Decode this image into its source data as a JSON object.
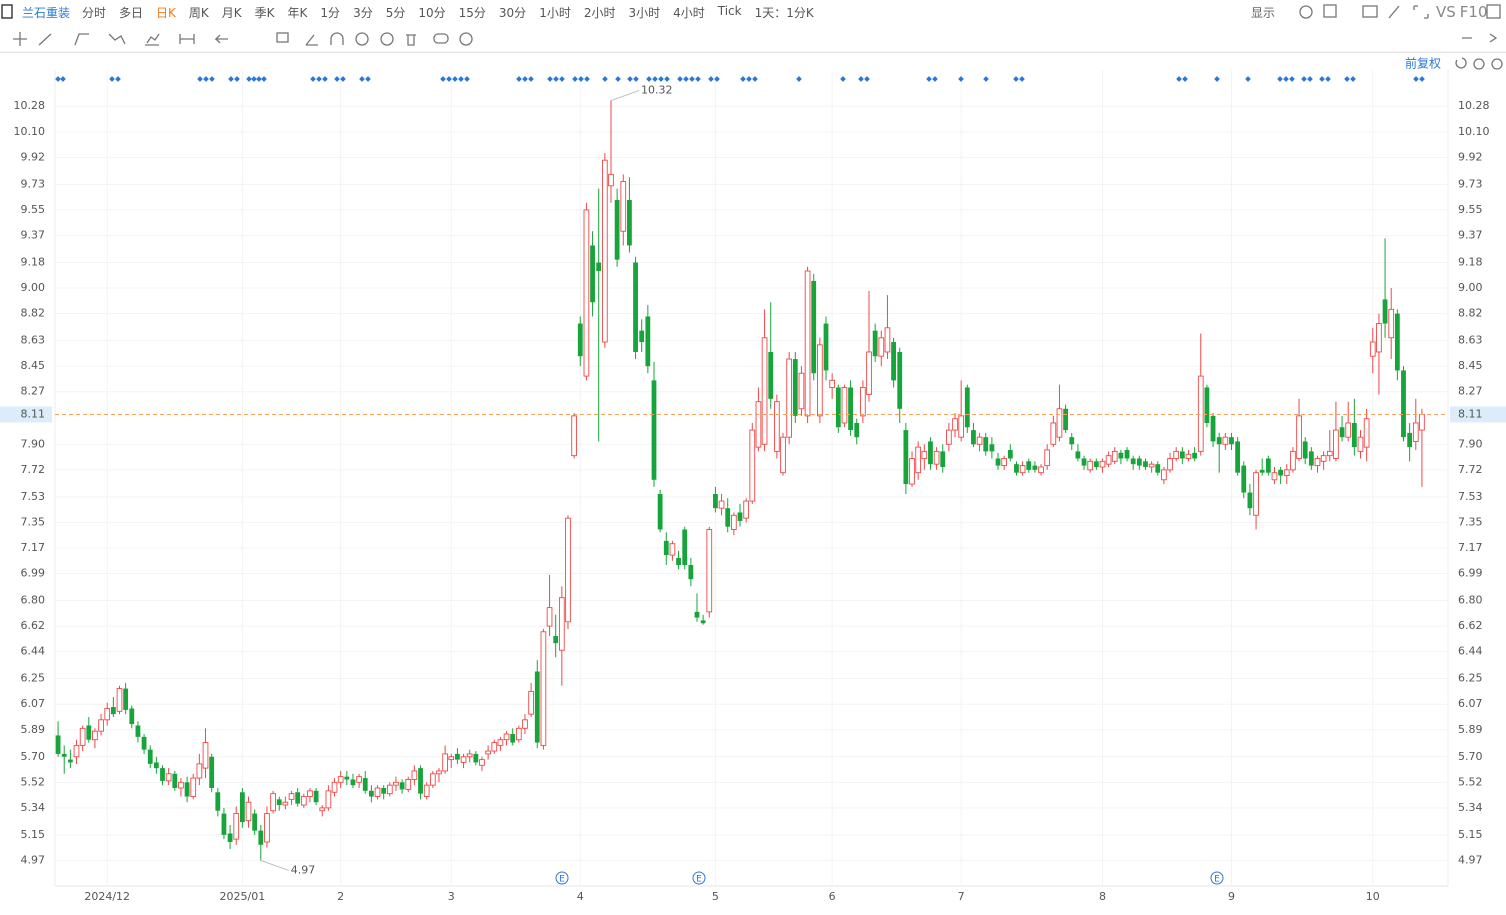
{
  "toolbar": {
    "stock": "兰石重装",
    "periods": [
      "分时",
      "多日",
      "日K",
      "周K",
      "月K",
      "季K",
      "年K",
      "1分",
      "3分",
      "5分",
      "10分",
      "15分",
      "30分",
      "1小时",
      "2小时",
      "3小时",
      "4小时",
      "Tick"
    ],
    "active_index": 2,
    "interval": "1天：1分K",
    "display": "显示",
    "compare": "VS",
    "f10": "F10",
    "adjust": "前复权"
  },
  "chart_data": {
    "type": "candlestick",
    "up_color": "#f04848",
    "down_color": "#17a43b",
    "current_price": 8.11,
    "max_label": 10.32,
    "min_label": 4.97,
    "event_label": "E",
    "ylim": [
      4.79,
      10.5
    ],
    "yticks": [
      4.97,
      5.15,
      5.34,
      5.52,
      {
        "value": 5.7,
        "label": "5.70"
      },
      5.89,
      6.07,
      6.25,
      6.44,
      6.62,
      {
        "value": 6.8,
        "label": "6.80"
      },
      6.99,
      7.17,
      7.35,
      7.53,
      7.72,
      {
        "value": 7.9,
        "label": "7.90"
      },
      8.27,
      8.45,
      8.63,
      8.82,
      {
        "value": 9,
        "label": "9.00"
      },
      9.18,
      9.37,
      9.55,
      9.73,
      9.92,
      {
        "value": 10.1,
        "label": "10.10"
      },
      10.28
    ],
    "categories": [
      null,
      null,
      null,
      null,
      null,
      null,
      null,
      null,
      "2024/12",
      null,
      null,
      null,
      null,
      null,
      null,
      null,
      null,
      null,
      null,
      null,
      null,
      null,
      null,
      null,
      null,
      null,
      null,
      null,
      null,
      null,
      "2025/01",
      null,
      null,
      null,
      null,
      null,
      null,
      null,
      null,
      null,
      null,
      null,
      null,
      null,
      null,
      null,
      "2",
      null,
      null,
      null,
      null,
      null,
      null,
      null,
      null,
      null,
      null,
      null,
      null,
      null,
      null,
      null,
      null,
      null,
      "3",
      null,
      null,
      null,
      null,
      null,
      null,
      null,
      null,
      null,
      null,
      null,
      null,
      null,
      null,
      null,
      null,
      null,
      null,
      null,
      null,
      "4",
      null,
      null,
      null,
      null,
      null,
      null,
      null,
      null,
      null,
      null,
      null,
      null,
      null,
      null,
      null,
      null,
      null,
      null,
      null,
      null,
      null,
      "5",
      null,
      null,
      null,
      null,
      null,
      null,
      null,
      null,
      null,
      null,
      null,
      null,
      null,
      null,
      null,
      null,
      null,
      null,
      "6",
      null,
      null,
      null,
      null,
      null,
      null,
      null,
      null,
      null,
      null,
      null,
      null,
      null,
      null,
      null,
      null,
      null,
      null,
      null,
      null,
      "7",
      null,
      null,
      null,
      null,
      null,
      null,
      null,
      null,
      null,
      null,
      null,
      null,
      null,
      null,
      null,
      null,
      null,
      null,
      null,
      null,
      null,
      null,
      "8",
      null,
      null,
      null,
      null,
      null,
      null,
      null,
      null,
      null,
      null,
      null,
      null,
      null,
      null,
      null,
      null,
      null,
      null,
      null,
      null,
      "9",
      null,
      null,
      null,
      null,
      null,
      null,
      null,
      null,
      null,
      null,
      null,
      null,
      null,
      null,
      null,
      null,
      null,
      null,
      null,
      null,
      null,
      null,
      "10",
      null,
      null,
      null,
      null,
      null,
      null,
      null,
      null
    ],
    "ohlc": [
      [
        5.85,
        5.95,
        5.7,
        5.72
      ],
      [
        5.72,
        5.78,
        5.58,
        5.7
      ],
      [
        5.68,
        5.75,
        5.62,
        5.66
      ],
      [
        5.7,
        5.82,
        5.65,
        5.78
      ],
      [
        5.78,
        5.92,
        5.74,
        5.9
      ],
      [
        5.92,
        5.98,
        5.8,
        5.82
      ],
      [
        5.82,
        5.9,
        5.76,
        5.88
      ],
      [
        5.88,
        6.0,
        5.85,
        5.96
      ],
      [
        5.96,
        6.08,
        5.92,
        6.04
      ],
      [
        6.05,
        6.12,
        5.98,
        6.0
      ],
      [
        6.02,
        6.2,
        6.0,
        6.18
      ],
      [
        6.18,
        6.22,
        6.0,
        6.03
      ],
      [
        6.04,
        6.06,
        5.9,
        5.93
      ],
      [
        5.92,
        5.95,
        5.8,
        5.84
      ],
      [
        5.84,
        5.86,
        5.72,
        5.75
      ],
      [
        5.75,
        5.78,
        5.62,
        5.65
      ],
      [
        5.66,
        5.7,
        5.58,
        5.62
      ],
      [
        5.62,
        5.64,
        5.5,
        5.53
      ],
      [
        5.53,
        5.62,
        5.5,
        5.58
      ],
      [
        5.58,
        5.6,
        5.46,
        5.48
      ],
      [
        5.48,
        5.55,
        5.42,
        5.52
      ],
      [
        5.52,
        5.56,
        5.38,
        5.42
      ],
      [
        5.42,
        5.58,
        5.4,
        5.55
      ],
      [
        5.55,
        5.72,
        5.5,
        5.65
      ],
      [
        5.62,
        5.9,
        5.55,
        5.8
      ],
      [
        5.7,
        5.72,
        5.45,
        5.48
      ],
      [
        5.45,
        5.48,
        5.28,
        5.32
      ],
      [
        5.3,
        5.34,
        5.12,
        5.15
      ],
      [
        5.16,
        5.22,
        5.05,
        5.1
      ],
      [
        5.12,
        5.35,
        5.08,
        5.3
      ],
      [
        5.45,
        5.48,
        5.2,
        5.24
      ],
      [
        5.25,
        5.42,
        5.2,
        5.38
      ],
      [
        5.3,
        5.33,
        5.15,
        5.18
      ],
      [
        5.18,
        5.22,
        4.97,
        5.08
      ],
      [
        5.1,
        5.35,
        5.06,
        5.3
      ],
      [
        5.32,
        5.46,
        5.3,
        5.44
      ],
      [
        5.4,
        5.42,
        5.32,
        5.36
      ],
      [
        5.36,
        5.42,
        5.33,
        5.38
      ],
      [
        5.4,
        5.46,
        5.36,
        5.44
      ],
      [
        5.45,
        5.48,
        5.35,
        5.37
      ],
      [
        5.36,
        5.44,
        5.34,
        5.42
      ],
      [
        5.42,
        5.48,
        5.38,
        5.46
      ],
      [
        5.46,
        5.48,
        5.36,
        5.38
      ],
      [
        5.32,
        5.36,
        5.28,
        5.34
      ],
      [
        5.34,
        5.5,
        5.32,
        5.46
      ],
      [
        5.45,
        5.55,
        5.42,
        5.52
      ],
      [
        5.52,
        5.6,
        5.48,
        5.56
      ],
      [
        5.56,
        5.6,
        5.5,
        5.54
      ],
      [
        5.54,
        5.58,
        5.48,
        5.5
      ],
      [
        5.52,
        5.58,
        5.48,
        5.56
      ],
      [
        5.55,
        5.6,
        5.44,
        5.46
      ],
      [
        5.46,
        5.5,
        5.38,
        5.42
      ],
      [
        5.42,
        5.5,
        5.4,
        5.48
      ],
      [
        5.48,
        5.5,
        5.4,
        5.44
      ],
      [
        5.44,
        5.52,
        5.42,
        5.5
      ],
      [
        5.5,
        5.56,
        5.46,
        5.52
      ],
      [
        5.52,
        5.54,
        5.44,
        5.47
      ],
      [
        5.47,
        5.56,
        5.45,
        5.54
      ],
      [
        5.54,
        5.64,
        5.5,
        5.6
      ],
      [
        5.62,
        5.64,
        5.4,
        5.44
      ],
      [
        5.42,
        5.52,
        5.4,
        5.5
      ],
      [
        5.5,
        5.6,
        5.48,
        5.58
      ],
      [
        5.58,
        5.62,
        5.52,
        5.6
      ],
      [
        5.6,
        5.78,
        5.58,
        5.72
      ],
      [
        5.68,
        5.72,
        5.62,
        5.7
      ],
      [
        5.72,
        5.76,
        5.65,
        5.68
      ],
      [
        5.66,
        5.72,
        5.62,
        5.7
      ],
      [
        5.7,
        5.75,
        5.66,
        5.72
      ],
      [
        5.72,
        5.74,
        5.64,
        5.66
      ],
      [
        5.64,
        5.7,
        5.6,
        5.68
      ],
      [
        5.72,
        5.78,
        5.68,
        5.74
      ],
      [
        5.74,
        5.82,
        5.72,
        5.8
      ],
      [
        5.78,
        5.84,
        5.74,
        5.82
      ],
      [
        5.82,
        5.88,
        5.78,
        5.86
      ],
      [
        5.86,
        5.9,
        5.78,
        5.8
      ],
      [
        5.82,
        5.92,
        5.8,
        5.9
      ],
      [
        5.9,
        6.0,
        5.86,
        5.96
      ],
      [
        6.0,
        6.22,
        5.98,
        6.16
      ],
      [
        6.3,
        6.38,
        5.76,
        5.8
      ],
      [
        5.78,
        6.6,
        5.75,
        6.58
      ],
      [
        6.62,
        6.98,
        6.55,
        6.75
      ],
      [
        6.55,
        6.7,
        6.4,
        6.5
      ],
      [
        6.45,
        6.9,
        6.2,
        6.82
      ],
      [
        6.65,
        7.4,
        6.6,
        7.38
      ],
      [
        7.82,
        8.12,
        7.8,
        8.1
      ],
      [
        8.75,
        8.8,
        8.45,
        8.52
      ],
      [
        8.38,
        9.6,
        8.35,
        9.55
      ],
      [
        9.3,
        9.4,
        8.8,
        8.9
      ],
      [
        9.18,
        9.7,
        7.92,
        9.12
      ],
      [
        8.62,
        9.95,
        8.58,
        9.9
      ],
      [
        9.72,
        10.32,
        9.6,
        9.8
      ],
      [
        9.62,
        9.7,
        9.15,
        9.2
      ],
      [
        9.4,
        9.8,
        9.3,
        9.75
      ],
      [
        9.62,
        9.78,
        9.25,
        9.3
      ],
      [
        9.18,
        9.22,
        8.5,
        8.55
      ],
      [
        8.7,
        8.78,
        8.55,
        8.62
      ],
      [
        8.8,
        8.88,
        8.4,
        8.45
      ],
      [
        8.35,
        8.48,
        7.6,
        7.65
      ],
      [
        7.55,
        7.58,
        7.28,
        7.3
      ],
      [
        7.22,
        7.28,
        7.05,
        7.12
      ],
      [
        7.12,
        7.22,
        7.08,
        7.2
      ],
      [
        7.1,
        7.15,
        7.02,
        7.05
      ],
      [
        7.3,
        7.32,
        7.02,
        7.05
      ],
      [
        7.05,
        7.1,
        6.9,
        6.95
      ],
      [
        6.72,
        6.85,
        6.65,
        6.68
      ],
      [
        6.66,
        6.7,
        6.63,
        6.64
      ],
      [
        6.72,
        7.32,
        6.68,
        7.3
      ],
      [
        7.55,
        7.6,
        7.42,
        7.45
      ],
      [
        7.45,
        7.55,
        7.4,
        7.5
      ],
      [
        7.45,
        7.52,
        7.28,
        7.32
      ],
      [
        7.3,
        7.42,
        7.26,
        7.4
      ],
      [
        7.42,
        7.48,
        7.32,
        7.36
      ],
      [
        7.38,
        7.52,
        7.35,
        7.5
      ],
      [
        7.5,
        8.05,
        7.48,
        8.0
      ],
      [
        7.88,
        8.3,
        7.85,
        8.2
      ],
      [
        7.9,
        8.85,
        7.85,
        8.65
      ],
      [
        8.55,
        8.9,
        8.15,
        8.22
      ],
      [
        7.85,
        8.25,
        7.8,
        8.2
      ],
      [
        7.7,
        7.98,
        7.68,
        7.95
      ],
      [
        7.95,
        8.55,
        7.9,
        8.5
      ],
      [
        8.5,
        8.55,
        8.05,
        8.1
      ],
      [
        8.15,
        8.45,
        8.1,
        8.4
      ],
      [
        8.1,
        9.15,
        8.05,
        9.12
      ],
      [
        9.05,
        9.1,
        8.35,
        8.4
      ],
      [
        8.1,
        8.65,
        8.05,
        8.6
      ],
      [
        8.75,
        8.8,
        8.35,
        8.42
      ],
      [
        8.3,
        8.4,
        8.22,
        8.35
      ],
      [
        8.3,
        8.32,
        7.98,
        8.02
      ],
      [
        8.05,
        8.32,
        8.02,
        8.3
      ],
      [
        8.3,
        8.35,
        7.96,
        8.0
      ],
      [
        8.05,
        8.08,
        7.9,
        7.95
      ],
      [
        8.1,
        8.35,
        8.05,
        8.3
      ],
      [
        8.25,
        8.98,
        8.2,
        8.55
      ],
      [
        8.7,
        8.75,
        8.48,
        8.52
      ],
      [
        8.52,
        8.7,
        8.45,
        8.65
      ],
      [
        8.55,
        8.95,
        8.5,
        8.72
      ],
      [
        8.62,
        8.65,
        8.3,
        8.35
      ],
      [
        8.55,
        8.58,
        8.05,
        8.15
      ],
      [
        8.0,
        8.05,
        7.55,
        7.62
      ],
      [
        7.62,
        7.85,
        7.6,
        7.8
      ],
      [
        7.7,
        7.92,
        7.65,
        7.88
      ],
      [
        7.8,
        7.9,
        7.72,
        7.85
      ],
      [
        7.92,
        7.95,
        7.72,
        7.76
      ],
      [
        7.76,
        7.88,
        7.72,
        7.85
      ],
      [
        7.85,
        7.9,
        7.7,
        7.74
      ],
      [
        7.9,
        8.05,
        7.85,
        8.0
      ],
      [
        8.0,
        8.12,
        7.95,
        8.08
      ],
      [
        7.95,
        8.35,
        7.92,
        8.1
      ],
      [
        8.3,
        8.32,
        7.98,
        8.02
      ],
      [
        8.0,
        8.05,
        7.88,
        7.9
      ],
      [
        7.9,
        7.98,
        7.85,
        7.95
      ],
      [
        7.95,
        7.98,
        7.82,
        7.85
      ],
      [
        7.9,
        7.95,
        7.8,
        7.85
      ],
      [
        7.8,
        7.84,
        7.72,
        7.75
      ],
      [
        7.75,
        7.82,
        7.72,
        7.8
      ],
      [
        7.86,
        7.9,
        7.78,
        7.8
      ],
      [
        7.76,
        7.78,
        7.68,
        7.7
      ],
      [
        7.7,
        7.78,
        7.68,
        7.75
      ],
      [
        7.78,
        7.8,
        7.7,
        7.72
      ],
      [
        7.75,
        7.78,
        7.7,
        7.72
      ],
      [
        7.7,
        7.76,
        7.68,
        7.74
      ],
      [
        7.75,
        7.9,
        7.72,
        7.86
      ],
      [
        7.9,
        8.1,
        7.88,
        8.05
      ],
      [
        7.95,
        8.32,
        7.92,
        8.15
      ],
      [
        8.15,
        8.18,
        7.98,
        8.0
      ],
      [
        7.95,
        7.98,
        7.86,
        7.9
      ],
      [
        7.85,
        7.9,
        7.78,
        7.8
      ],
      [
        7.8,
        7.82,
        7.72,
        7.75
      ],
      [
        7.72,
        7.8,
        7.7,
        7.78
      ],
      [
        7.78,
        7.8,
        7.72,
        7.74
      ],
      [
        7.74,
        7.8,
        7.7,
        7.78
      ],
      [
        7.76,
        7.85,
        7.74,
        7.82
      ],
      [
        7.78,
        7.88,
        7.76,
        7.85
      ],
      [
        7.84,
        7.86,
        7.76,
        7.8
      ],
      [
        7.86,
        7.88,
        7.78,
        7.8
      ],
      [
        7.8,
        7.82,
        7.72,
        7.76
      ],
      [
        7.8,
        7.82,
        7.72,
        7.75
      ],
      [
        7.78,
        7.8,
        7.72,
        7.74
      ],
      [
        7.74,
        7.78,
        7.7,
        7.76
      ],
      [
        7.76,
        7.78,
        7.68,
        7.7
      ],
      [
        7.65,
        7.74,
        7.62,
        7.72
      ],
      [
        7.72,
        7.84,
        7.7,
        7.8
      ],
      [
        7.8,
        7.88,
        7.78,
        7.85
      ],
      [
        7.85,
        7.88,
        7.76,
        7.8
      ],
      [
        7.8,
        7.86,
        7.78,
        7.83
      ],
      [
        7.84,
        7.88,
        7.78,
        7.8
      ],
      [
        7.85,
        8.68,
        7.82,
        8.38
      ],
      [
        8.3,
        8.32,
        8.02,
        8.05
      ],
      [
        8.1,
        8.12,
        7.88,
        7.92
      ],
      [
        7.95,
        7.98,
        7.7,
        7.9
      ],
      [
        7.9,
        7.98,
        7.86,
        7.95
      ],
      [
        7.95,
        7.98,
        7.86,
        7.9
      ],
      [
        7.92,
        7.95,
        7.68,
        7.7
      ],
      [
        7.75,
        7.78,
        7.52,
        7.56
      ],
      [
        7.56,
        7.62,
        7.4,
        7.45
      ],
      [
        7.4,
        7.72,
        7.3,
        7.7
      ],
      [
        7.72,
        7.8,
        7.68,
        7.7
      ],
      [
        7.8,
        7.82,
        7.68,
        7.7
      ],
      [
        7.65,
        7.74,
        7.62,
        7.7
      ],
      [
        7.72,
        7.74,
        7.62,
        7.68
      ],
      [
        7.68,
        7.76,
        7.62,
        7.72
      ],
      [
        7.72,
        7.88,
        7.7,
        7.85
      ],
      [
        7.8,
        8.22,
        7.78,
        8.1
      ],
      [
        7.92,
        7.95,
        7.76,
        7.8
      ],
      [
        7.85,
        7.88,
        7.72,
        7.75
      ],
      [
        7.75,
        7.82,
        7.7,
        7.8
      ],
      [
        7.78,
        7.85,
        7.72,
        7.82
      ],
      [
        7.82,
        8.0,
        7.78,
        7.85
      ],
      [
        7.8,
        8.2,
        7.78,
        8.0
      ],
      [
        8.02,
        8.1,
        7.92,
        7.95
      ],
      [
        7.95,
        8.2,
        7.92,
        8.05
      ],
      [
        8.05,
        8.22,
        7.82,
        7.88
      ],
      [
        7.85,
        8.0,
        7.8,
        7.95
      ],
      [
        7.88,
        8.15,
        7.78,
        8.08
      ],
      [
        8.52,
        8.72,
        8.4,
        8.62
      ],
      [
        8.55,
        8.82,
        8.25,
        8.75
      ],
      [
        8.92,
        9.35,
        8.65,
        8.75
      ],
      [
        8.65,
        9.0,
        8.5,
        8.85
      ],
      [
        8.82,
        8.85,
        8.35,
        8.42
      ],
      [
        8.42,
        8.45,
        7.92,
        7.95
      ],
      [
        7.98,
        8.05,
        7.78,
        7.88
      ],
      [
        7.92,
        8.22,
        7.86,
        8.05
      ],
      [
        8.0,
        8.15,
        7.6,
        8.11
      ]
    ]
  }
}
